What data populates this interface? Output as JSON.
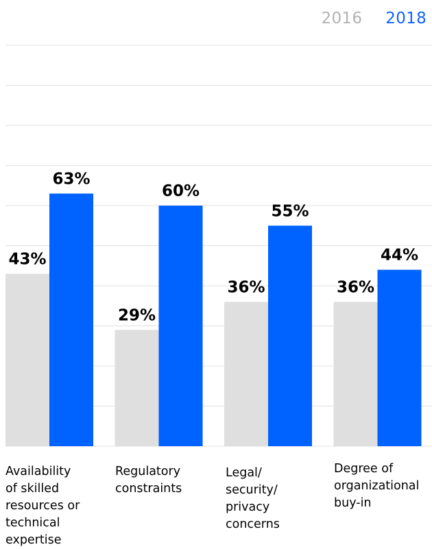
{
  "legend": [
    {
      "label": "2016",
      "color": "#b3b3b3"
    },
    {
      "label": "2018",
      "color": "#0f62fe"
    }
  ],
  "colors": {
    "bar_2016": "#dfdfdf",
    "bar_2018": "#0062ff",
    "grid": "#e0e0e0"
  },
  "chart_data": {
    "type": "bar",
    "categories": [
      [
        "Availability",
        "of skilled",
        "resources or",
        "technical",
        "expertise"
      ],
      [
        "Regulatory",
        "constraints"
      ],
      [
        "Legal/",
        "security/",
        "privacy",
        "concerns"
      ],
      [
        "Degree of",
        "organizational",
        "buy-in"
      ]
    ],
    "series": [
      {
        "name": "2016",
        "values": [
          43,
          29,
          36,
          36
        ],
        "labels": [
          "43%",
          "29%",
          "36%",
          "36%"
        ]
      },
      {
        "name": "2018",
        "values": [
          63,
          60,
          55,
          44
        ],
        "labels": [
          "63%",
          "60%",
          "55%",
          "44%"
        ]
      }
    ],
    "ylim": [
      0,
      100
    ],
    "grid": true,
    "legend_position": "top-right"
  }
}
